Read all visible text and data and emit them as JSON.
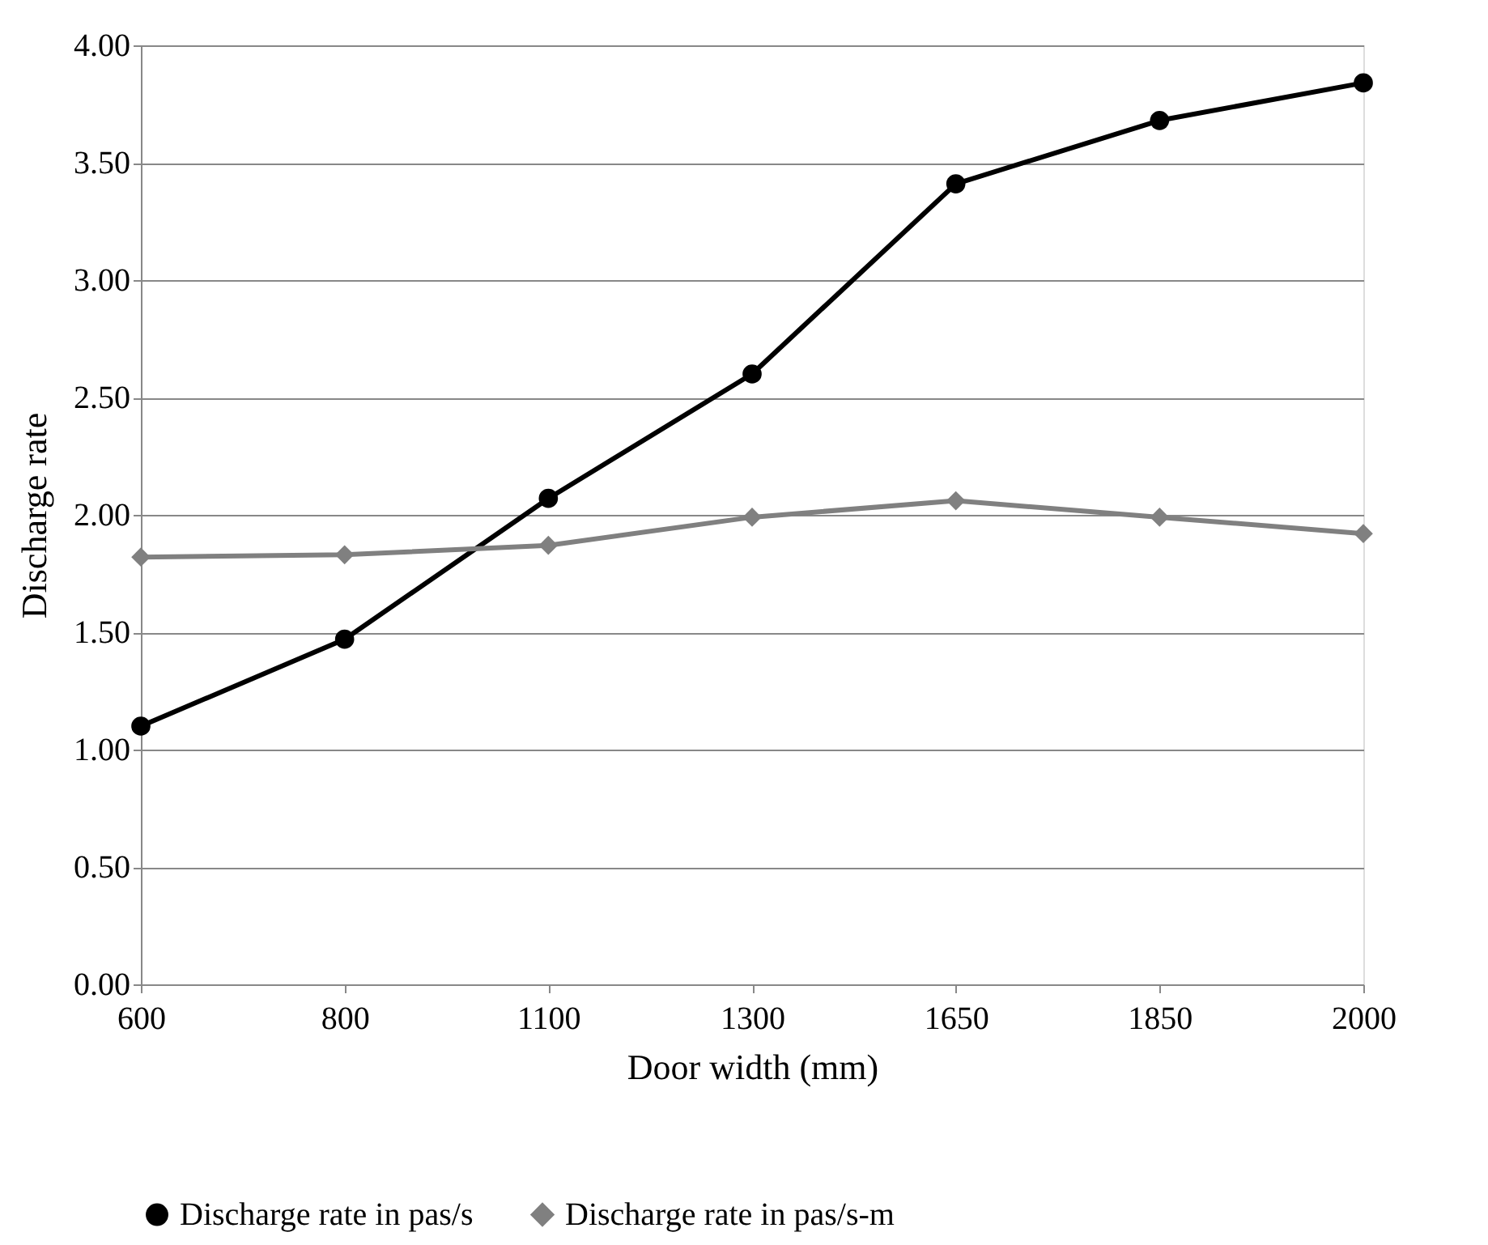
{
  "chart_data": {
    "type": "line",
    "xlabel": "Door width (mm)",
    "ylabel": "Discharge rate",
    "categories": [
      "600",
      "800",
      "1100",
      "1300",
      "1650",
      "1850",
      "2000"
    ],
    "series": [
      {
        "name": "Discharge rate in pas/s",
        "color": "#000000",
        "marker": "circle",
        "values": [
          1.1,
          1.47,
          2.07,
          2.6,
          3.41,
          3.68,
          3.84
        ]
      },
      {
        "name": "Discharge rate in pas/s-m",
        "color": "#808080",
        "marker": "diamond",
        "values": [
          1.82,
          1.83,
          1.87,
          1.99,
          2.06,
          1.99,
          1.92
        ]
      }
    ],
    "ylim": [
      0,
      4
    ],
    "yticks": [
      {
        "value": 0,
        "label": "0.00"
      },
      {
        "value": 0.5,
        "label": "0.50"
      },
      {
        "value": 1,
        "label": "1.00"
      },
      {
        "value": 1.5,
        "label": "1.50"
      },
      {
        "value": 2,
        "label": "2.00"
      },
      {
        "value": 2.5,
        "label": "2.50"
      },
      {
        "value": 3,
        "label": "3.00"
      },
      {
        "value": 3.5,
        "label": "3.50"
      },
      {
        "value": 4,
        "label": "4.00"
      }
    ],
    "grid": "y",
    "legend": "bottom",
    "line_style": "solid"
  }
}
